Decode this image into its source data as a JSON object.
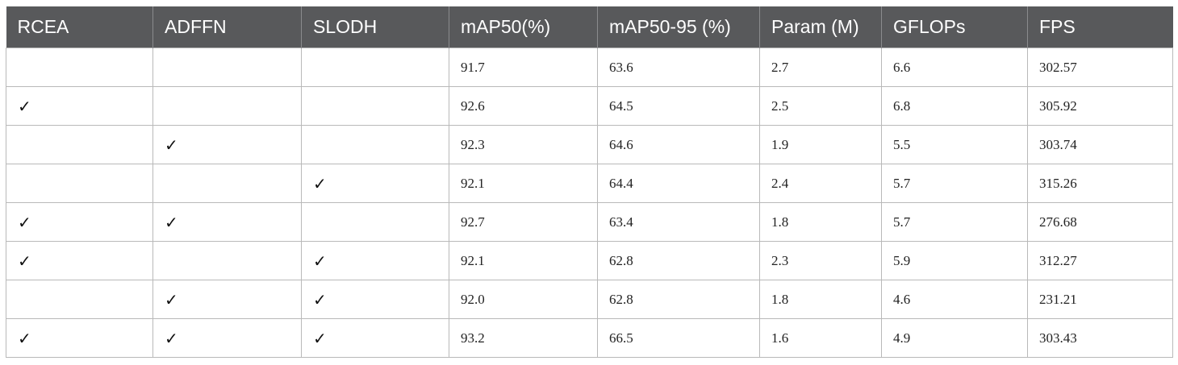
{
  "table": {
    "headers": [
      "RCEA",
      "ADFFN",
      "SLODH",
      "mAP50(%)",
      "mAP50-95 (%)",
      "Param (M)",
      "GFLOPs",
      "FPS"
    ],
    "rows": [
      [
        "",
        "",
        "",
        "91.7",
        "63.6",
        "2.7",
        "6.6",
        "302.57"
      ],
      [
        "✓",
        "",
        "",
        "92.6",
        "64.5",
        "2.5",
        "6.8",
        "305.92"
      ],
      [
        "",
        "✓",
        "",
        "92.3",
        "64.6",
        "1.9",
        "5.5",
        "303.74"
      ],
      [
        "",
        "",
        "✓",
        "92.1",
        "64.4",
        "2.4",
        "5.7",
        "315.26"
      ],
      [
        "✓",
        "✓",
        "",
        "92.7",
        "63.4",
        "1.8",
        "5.7",
        "276.68"
      ],
      [
        "✓",
        "",
        "✓",
        "92.1",
        "62.8",
        "2.3",
        "5.9",
        "312.27"
      ],
      [
        "",
        "✓",
        "✓",
        "92.0",
        "62.8",
        "1.8",
        "4.6",
        "231.21"
      ],
      [
        "✓",
        "✓",
        "✓",
        "93.2",
        "66.5",
        "1.6",
        "4.9",
        "303.43"
      ]
    ]
  },
  "colors": {
    "header_background": "#58595b",
    "header_text": "#ffffff",
    "cell_border": "#b9b9b9"
  }
}
